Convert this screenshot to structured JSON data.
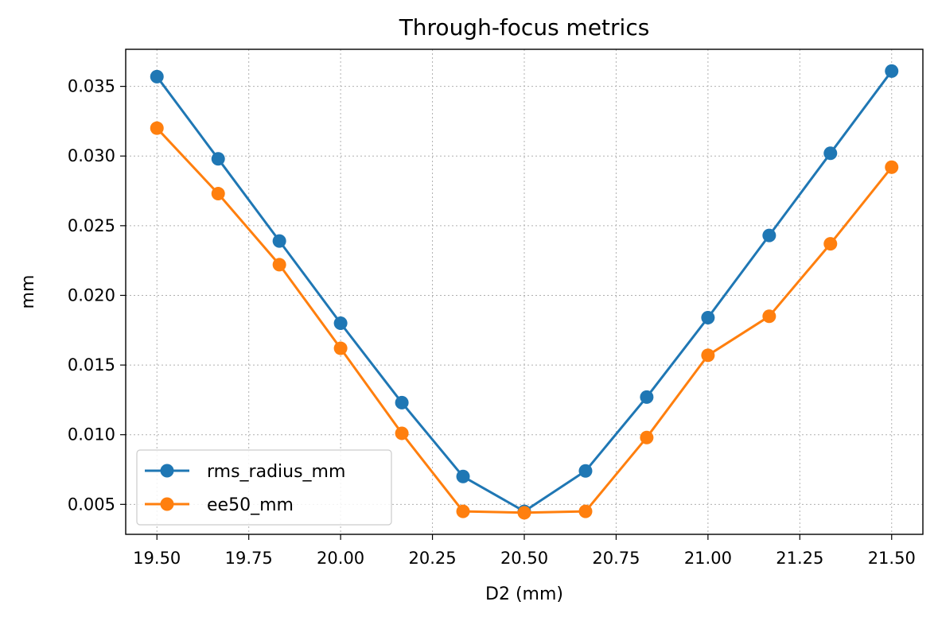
{
  "chart_data": {
    "type": "line",
    "title": "Through-focus metrics",
    "xlabel": "D2 (mm)",
    "ylabel": "mm",
    "xlim": [
      19.415,
      21.585
    ],
    "ylim": [
      0.00285,
      0.03766
    ],
    "xticks": [
      19.5,
      19.75,
      20.0,
      20.25,
      20.5,
      20.75,
      21.0,
      21.25,
      21.5
    ],
    "xtick_labels": [
      "19.50",
      "19.75",
      "20.00",
      "20.25",
      "20.50",
      "20.75",
      "21.00",
      "21.25",
      "21.50"
    ],
    "yticks": [
      0.005,
      0.01,
      0.015,
      0.02,
      0.025,
      0.03,
      0.035
    ],
    "ytick_labels": [
      "0.005",
      "0.010",
      "0.015",
      "0.020",
      "0.025",
      "0.030",
      "0.035"
    ],
    "grid": true,
    "legend_position": "bottom-left",
    "x": [
      19.5,
      19.6667,
      19.8333,
      20.0,
      20.1667,
      20.3333,
      20.5,
      20.6667,
      20.8333,
      21.0,
      21.1667,
      21.3333,
      21.5
    ],
    "series": [
      {
        "name": "rms_radius_mm",
        "color": "#1f77b4",
        "values": [
          0.0357,
          0.0298,
          0.0239,
          0.018,
          0.0123,
          0.007,
          0.0045,
          0.0074,
          0.0127,
          0.0184,
          0.0243,
          0.0302,
          0.0361
        ]
      },
      {
        "name": "ee50_mm",
        "color": "#ff7f0e",
        "values": [
          0.032,
          0.0273,
          0.0222,
          0.0162,
          0.0101,
          0.0045,
          0.0044,
          0.0045,
          0.0098,
          0.0157,
          0.0185,
          0.0237,
          0.0292
        ]
      }
    ]
  }
}
